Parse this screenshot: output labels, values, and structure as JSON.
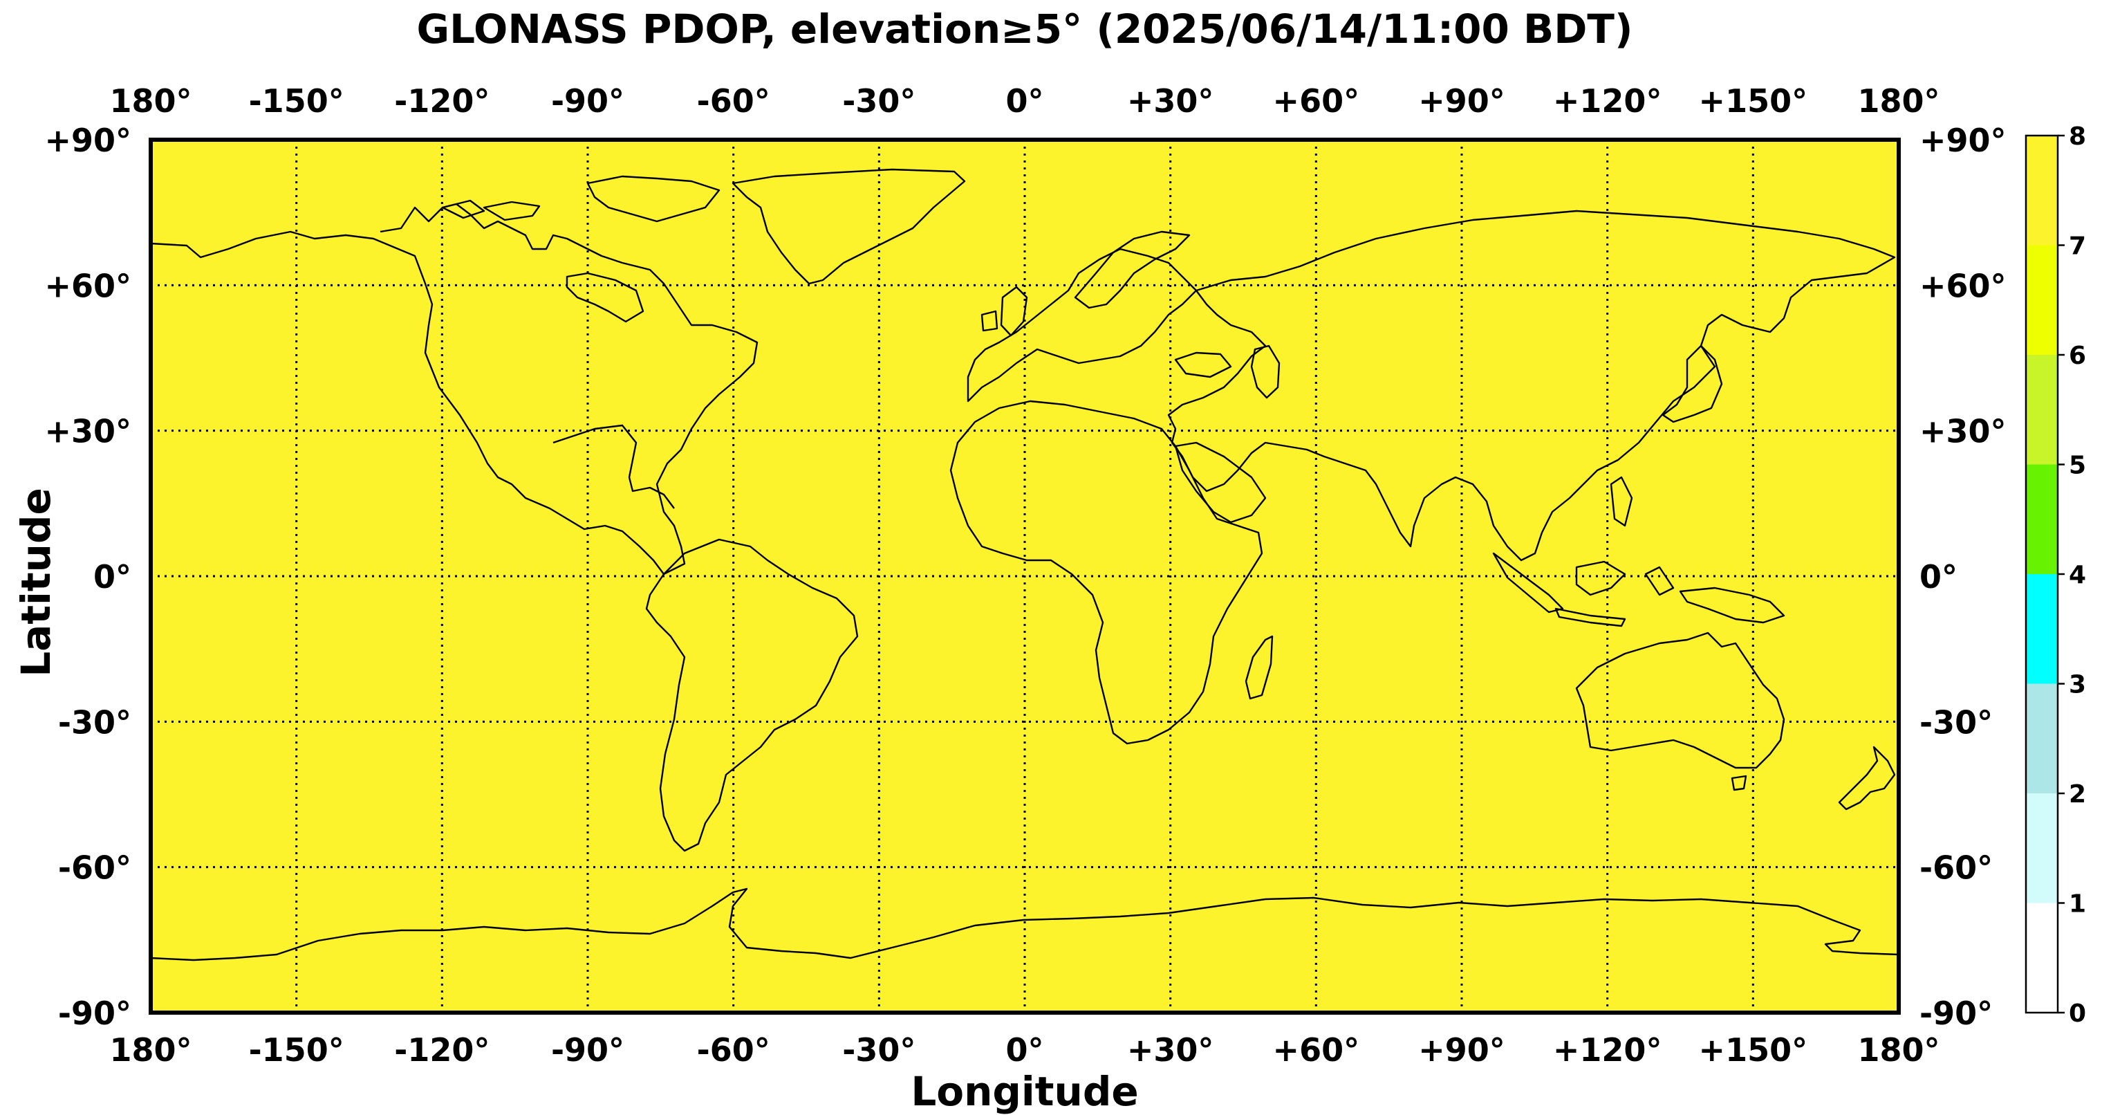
{
  "title": "GLONASS PDOP, elevation≥5° (2025/06/14/11:00 BDT)",
  "xlabel": "Longitude",
  "ylabel": "Latitude",
  "lon_ticks": [
    "180°",
    "-150°",
    "-120°",
    "-90°",
    "-60°",
    "-30°",
    "0°",
    "+30°",
    "+60°",
    "+90°",
    "+120°",
    "+150°",
    "180°"
  ],
  "lat_ticks": [
    "+90°",
    "+60°",
    "+30°",
    "0°",
    "-30°",
    "-60°",
    "-90°"
  ],
  "colorbar": {
    "ticks": [
      "0",
      "1",
      "2",
      "3",
      "4",
      "5",
      "6",
      "7",
      "8"
    ],
    "bands": [
      {
        "from": 0,
        "to": 1,
        "color": "#ffffff"
      },
      {
        "from": 1,
        "to": 2,
        "color": "#d2fbfb"
      },
      {
        "from": 2,
        "to": 3,
        "color": "#ade6e6"
      },
      {
        "from": 3,
        "to": 4,
        "color": "#00ffff"
      },
      {
        "from": 4,
        "to": 5,
        "color": "#66f200"
      },
      {
        "from": 5,
        "to": 6,
        "color": "#c8f529"
      },
      {
        "from": 6,
        "to": 7,
        "color": "#eeff00"
      },
      {
        "from": 7,
        "to": 8,
        "color": "#fdf32c"
      }
    ]
  },
  "map": {
    "field_color": "#fdf32c",
    "coastline_color": "#000000",
    "grid": "dotted"
  },
  "chart_data": {
    "type": "heatmap",
    "title": "GLONASS PDOP, elevation≥5° (2025/06/14/11:00 BDT)",
    "xlabel": "Longitude",
    "ylabel": "Latitude",
    "xlim": [
      -180,
      180
    ],
    "ylim": [
      -90,
      90
    ],
    "colorbar_range": [
      0,
      8
    ],
    "pdop_global_range": [
      7,
      8
    ],
    "grid": true
  }
}
